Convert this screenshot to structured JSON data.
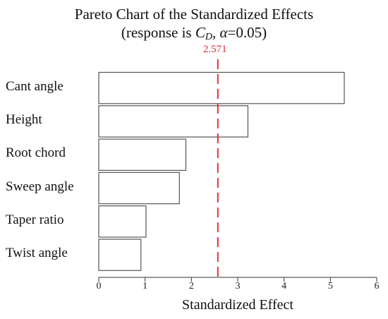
{
  "chart_data": {
    "type": "bar",
    "orientation": "horizontal",
    "title_line1": "Pareto Chart of the Standardized Effects",
    "title_line2": {
      "prefix": "(response is ",
      "variable": "C",
      "variable_sub": "D",
      "separator": ", ",
      "alpha_symbol": "α",
      "alpha_value": "=0.05)"
    },
    "categories": [
      "Cant angle",
      "Height",
      "Root chord",
      "Sweep angle",
      "Taper ratio",
      "Twist angle"
    ],
    "values": [
      5.3,
      3.22,
      1.88,
      1.74,
      1.02,
      0.91
    ],
    "reference_line": {
      "value": 2.571,
      "label": "2.571",
      "color": "#e0323c"
    },
    "xlabel": "Standardized Effect",
    "xlim": [
      0,
      6
    ],
    "xticks": [
      0,
      1,
      2,
      3,
      4,
      5,
      6
    ],
    "grid": false,
    "bar_fill": "#ffffff",
    "bar_stroke": "#555555"
  }
}
